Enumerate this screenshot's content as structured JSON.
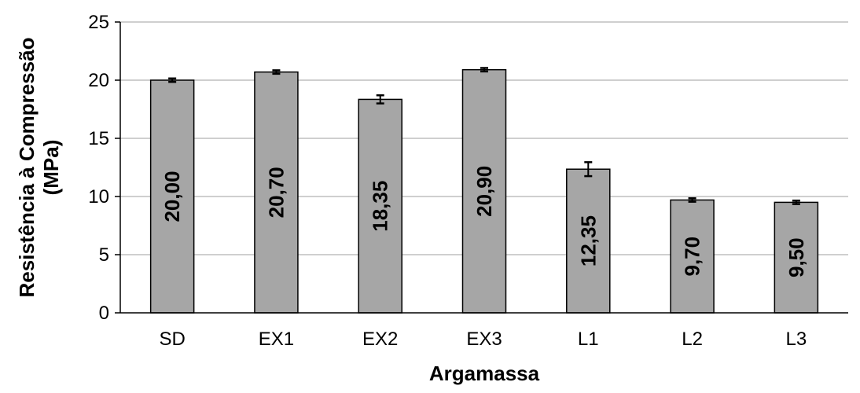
{
  "chart_data": {
    "type": "bar",
    "categories": [
      "SD",
      "EX1",
      "EX2",
      "EX3",
      "L1",
      "L2",
      "L3"
    ],
    "values": [
      20.0,
      20.7,
      18.35,
      20.9,
      12.35,
      9.7,
      9.5
    ],
    "error_bars": [
      0.15,
      0.15,
      0.35,
      0.15,
      0.6,
      0.15,
      0.15
    ],
    "data_labels": [
      "20,00",
      "20,70",
      "18,35",
      "20,90",
      "12,35",
      "9,70",
      "9,50"
    ],
    "xlabel": "Argamassa",
    "ylabel_line1": "Resistência à Compressão",
    "ylabel_line2": "(MPa)",
    "ylim": [
      0,
      25
    ],
    "yticks": [
      0,
      5,
      10,
      15,
      20,
      25
    ],
    "ytick_labels": [
      "0",
      "5",
      "10",
      "15",
      "20",
      "25"
    ],
    "grid": "horizontal",
    "legend": "none",
    "colors": {
      "bar_fill": "#a6a6a6",
      "bar_stroke": "#000000",
      "grid": "#bfbfbf",
      "axis": "#000000",
      "error_bar": "#000000"
    }
  }
}
